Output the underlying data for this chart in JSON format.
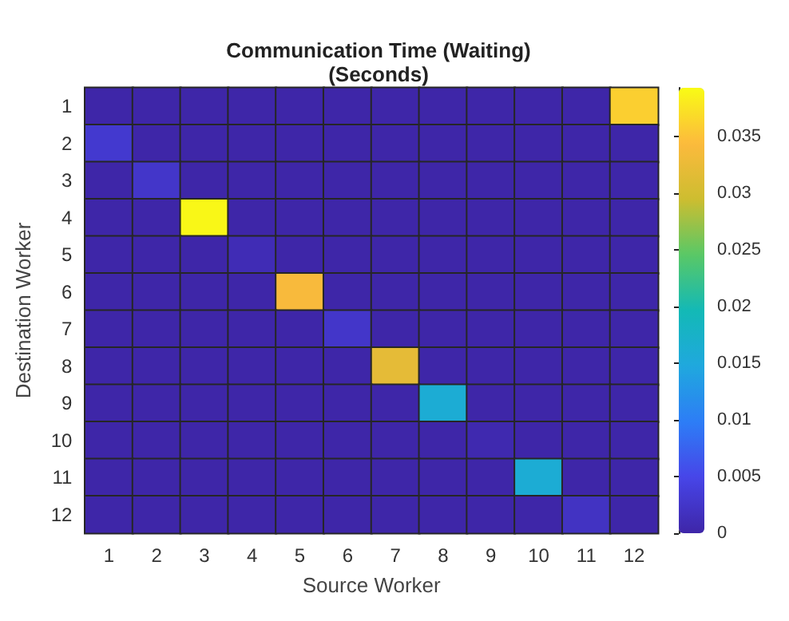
{
  "chart_data": {
    "type": "heatmap",
    "title": "Communication Time (Waiting)",
    "subtitle": "(Seconds)",
    "xlabel": "Source Worker",
    "ylabel": "Destination Worker",
    "categories": [
      "1",
      "2",
      "3",
      "4",
      "5",
      "6",
      "7",
      "8",
      "9",
      "10",
      "11",
      "12"
    ],
    "y_categories": [
      "1",
      "2",
      "3",
      "4",
      "5",
      "6",
      "7",
      "8",
      "9",
      "10",
      "11",
      "12"
    ],
    "cells": [
      [
        0,
        0,
        0,
        0,
        0,
        0,
        0,
        0,
        0,
        0,
        0,
        0.036
      ],
      [
        0.003,
        0,
        0,
        0,
        0,
        0,
        0,
        0,
        0,
        0,
        0,
        0
      ],
      [
        0,
        0.0025,
        0,
        0,
        0,
        0,
        0,
        0,
        0,
        0,
        0,
        0
      ],
      [
        0,
        0,
        0.039,
        0,
        0,
        0,
        0,
        0,
        0,
        0,
        0,
        0
      ],
      [
        0,
        0,
        0,
        0.001,
        0,
        0,
        0,
        0,
        0,
        0,
        0,
        0
      ],
      [
        0,
        0,
        0,
        0,
        0.034,
        0,
        0,
        0,
        0,
        0,
        0,
        0
      ],
      [
        0,
        0,
        0,
        0,
        0,
        0.0025,
        0,
        0,
        0,
        0,
        0,
        0
      ],
      [
        0,
        0,
        0,
        0,
        0,
        0,
        0.032,
        0,
        0,
        0,
        0,
        0
      ],
      [
        0,
        0,
        0,
        0,
        0,
        0,
        0,
        0.016,
        0,
        0,
        0,
        0
      ],
      [
        0,
        0,
        0,
        0,
        0,
        0,
        0,
        0,
        0.0005,
        0,
        0,
        0
      ],
      [
        0,
        0,
        0,
        0,
        0,
        0,
        0,
        0,
        0,
        0.016,
        0,
        0
      ],
      [
        0,
        0,
        0,
        0,
        0,
        0,
        0,
        0,
        0,
        0,
        0.002,
        0
      ]
    ],
    "clim": [
      0,
      0.0393
    ],
    "cticks": [
      0,
      0.005,
      0.01,
      0.015,
      0.02,
      0.025,
      0.03,
      0.035
    ]
  }
}
